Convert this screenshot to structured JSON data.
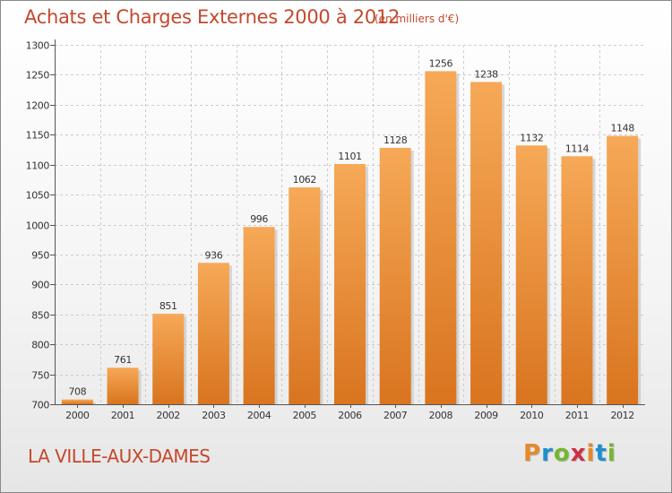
{
  "header": {
    "title": "Achats et Charges Externes 2000 à 2012",
    "subtitle": "(en milliers d'€)"
  },
  "footer": {
    "location": "LA VILLE-AUX-DAMES",
    "logo_letters": [
      "P",
      "r",
      "o",
      "x",
      "i",
      "t",
      "i"
    ],
    "logo_colors": [
      "#e5892a",
      "#1f8ed1",
      "#75b72f",
      "#d02e44",
      "#e5892a",
      "#1f8ed1",
      "#75b72f"
    ]
  },
  "colors": {
    "title": "#c4482d",
    "bar_light": "#f6a957",
    "bar_dark": "#d9741f",
    "grid": "#cccccc",
    "axis": "#555555"
  },
  "chart_data": {
    "type": "bar",
    "title": "Achats et Charges Externes 2000 à 2012",
    "subtitle": "(en milliers d'€)",
    "categories": [
      "2000",
      "2001",
      "2002",
      "2003",
      "2004",
      "2005",
      "2006",
      "2007",
      "2008",
      "2009",
      "2010",
      "2011",
      "2012"
    ],
    "values": [
      708,
      761,
      851,
      936,
      996,
      1062,
      1101,
      1128,
      1256,
      1238,
      1132,
      1114,
      1148
    ],
    "ylim": [
      700,
      1300
    ],
    "yticks": [
      700,
      750,
      800,
      850,
      900,
      950,
      1000,
      1050,
      1100,
      1150,
      1200,
      1250,
      1300
    ],
    "grid": true,
    "data_labels": true
  }
}
